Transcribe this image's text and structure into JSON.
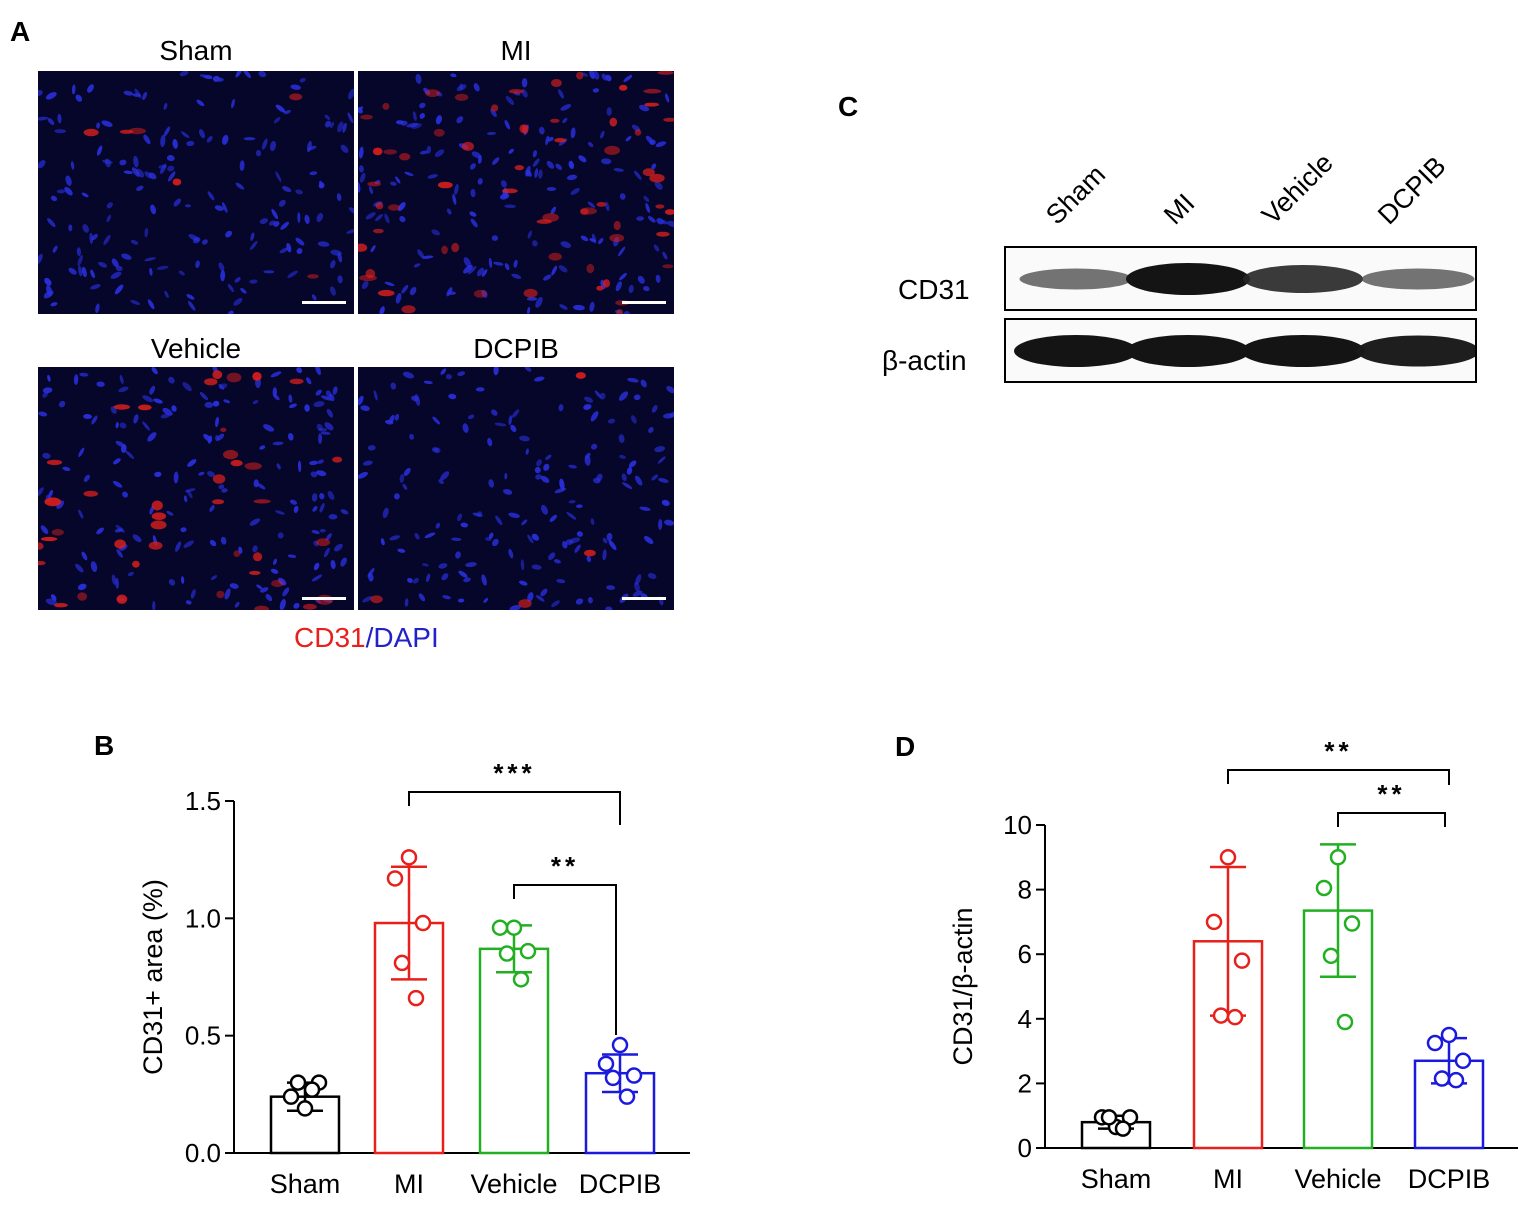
{
  "panel_a": {
    "letter": "A",
    "titles": [
      "Sham",
      "MI",
      "Vehicle",
      "DCPIB"
    ],
    "legend_red": "CD31",
    "legend_slash": "/",
    "legend_blue": "DAPI",
    "colors": {
      "red": "#e8201c",
      "blue": "#2222c8"
    }
  },
  "panel_c": {
    "letter": "C",
    "lanes": [
      "Sham",
      "MI",
      "Vehicle",
      "DCPIB"
    ],
    "rows": [
      "CD31",
      "β-actin"
    ],
    "band_intensity": {
      "CD31": [
        0.45,
        1.0,
        0.8,
        0.45
      ],
      "β-actin": [
        1.0,
        1.0,
        1.0,
        0.95
      ]
    }
  },
  "panel_b": {
    "letter": "B"
  },
  "panel_d": {
    "letter": "D"
  },
  "chart_data": [
    {
      "id": "B",
      "type": "bar",
      "categories": [
        "Sham",
        "MI",
        "Vehicle",
        "DCPIB"
      ],
      "ylabel": "CD31+ area (%)",
      "ylim": [
        0,
        1.5
      ],
      "yticks": [
        "0.0",
        "0.5",
        "1.0",
        "1.5"
      ],
      "means": [
        0.24,
        0.98,
        0.87,
        0.34
      ],
      "sd": [
        0.06,
        0.24,
        0.1,
        0.08
      ],
      "points": [
        [
          0.19,
          0.24,
          0.3,
          0.3,
          0.27
        ],
        [
          1.26,
          1.17,
          0.98,
          0.81,
          0.66
        ],
        [
          0.96,
          0.96,
          0.86,
          0.85,
          0.74
        ],
        [
          0.46,
          0.38,
          0.33,
          0.32,
          0.24
        ]
      ],
      "colors": [
        "#000000",
        "#e8201c",
        "#22b022",
        "#1a1adc"
      ],
      "significance": [
        {
          "from": "MI",
          "to": "DCPIB",
          "label": "***"
        },
        {
          "from": "Vehicle",
          "to": "DCPIB",
          "label": "**"
        }
      ]
    },
    {
      "id": "D",
      "type": "bar",
      "categories": [
        "Sham",
        "MI",
        "Vehicle",
        "DCPIB"
      ],
      "ylabel": "CD31/β-actin",
      "ylim": [
        0,
        10
      ],
      "yticks": [
        "0",
        "2",
        "4",
        "6",
        "8",
        "10"
      ],
      "means": [
        0.8,
        6.4,
        7.35,
        2.7
      ],
      "sd": [
        0.2,
        2.3,
        2.05,
        0.7
      ],
      "points": [
        [
          0.65,
          0.95,
          0.95,
          0.95,
          0.6
        ],
        [
          9.0,
          7.0,
          5.8,
          4.1,
          4.05
        ],
        [
          9.0,
          8.05,
          6.95,
          5.95,
          3.9
        ],
        [
          3.5,
          3.25,
          2.7,
          2.15,
          2.1
        ]
      ],
      "colors": [
        "#000000",
        "#e8201c",
        "#22b022",
        "#1a1adc"
      ],
      "significance": [
        {
          "from": "MI",
          "to": "DCPIB",
          "label": "**"
        },
        {
          "from": "Vehicle",
          "to": "DCPIB",
          "label": "**"
        }
      ]
    }
  ]
}
